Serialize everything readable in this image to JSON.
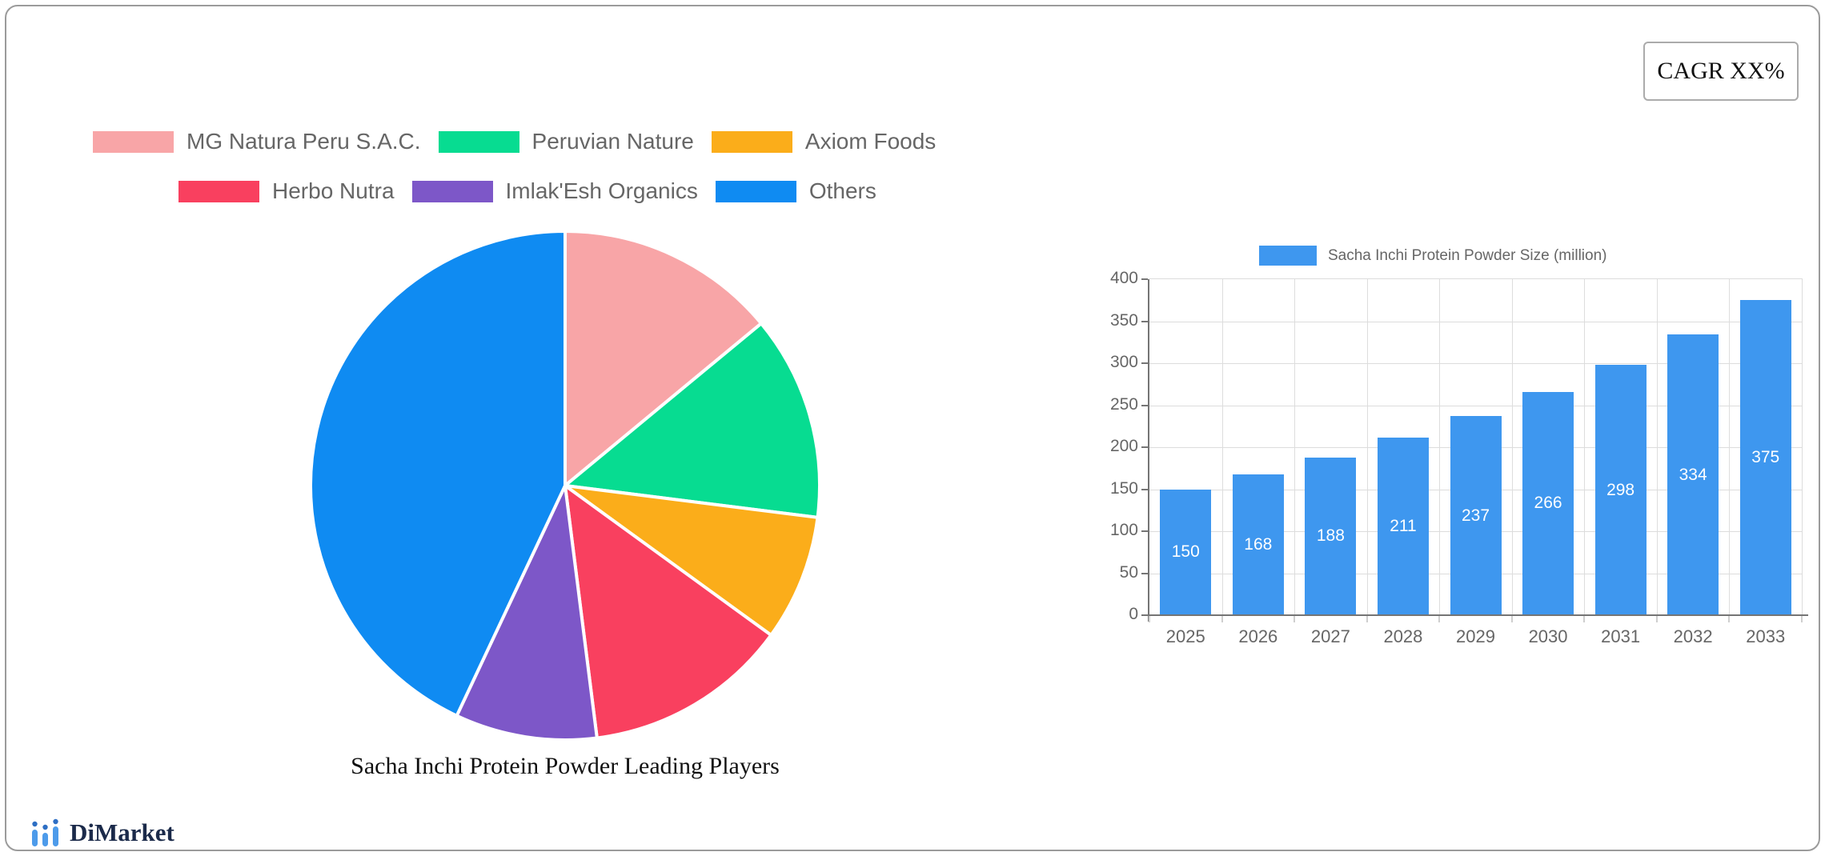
{
  "cagr_box": {
    "label": "CAGR XX%"
  },
  "brand": {
    "name": "DiMarket"
  },
  "chart_data": [
    {
      "id": "leading-players-pie",
      "type": "pie",
      "title": "Sacha Inchi Protein Powder Leading Players",
      "legend_position": "top",
      "legend_row_split": 3,
      "slices": [
        {
          "label": "MG Natura Peru S.A.C.",
          "value_pct": 14,
          "color": "#F8A5A7"
        },
        {
          "label": "Peruvian Nature",
          "value_pct": 13,
          "color": "#07DC91"
        },
        {
          "label": "Axiom Foods",
          "value_pct": 8,
          "color": "#FBAD1A"
        },
        {
          "label": "Herbo Nutra",
          "value_pct": 13,
          "color": "#F9405F"
        },
        {
          "label": "Imlak'Esh Organics",
          "value_pct": 9,
          "color": "#7D57C8"
        },
        {
          "label": "Others",
          "value_pct": 43,
          "color": "#0F8BF2"
        }
      ],
      "slice_border_color": "#FFFFFF"
    },
    {
      "id": "market-size-bars",
      "type": "bar",
      "categories": [
        "2025",
        "2026",
        "2027",
        "2028",
        "2029",
        "2030",
        "2031",
        "2032",
        "2033"
      ],
      "series": [
        {
          "name": "Sacha Inchi Protein Powder Size (million)",
          "values": [
            150,
            168,
            188,
            211,
            237,
            266,
            298,
            334,
            375
          ]
        }
      ],
      "ylim": [
        0,
        400
      ],
      "ytick_step": 50,
      "yticks": [
        0,
        50,
        100,
        150,
        200,
        250,
        300,
        350,
        400
      ],
      "grid": true,
      "legend_position": "top",
      "bar_color": "#3E97EF",
      "value_label_color": "#FFFFFF"
    }
  ]
}
